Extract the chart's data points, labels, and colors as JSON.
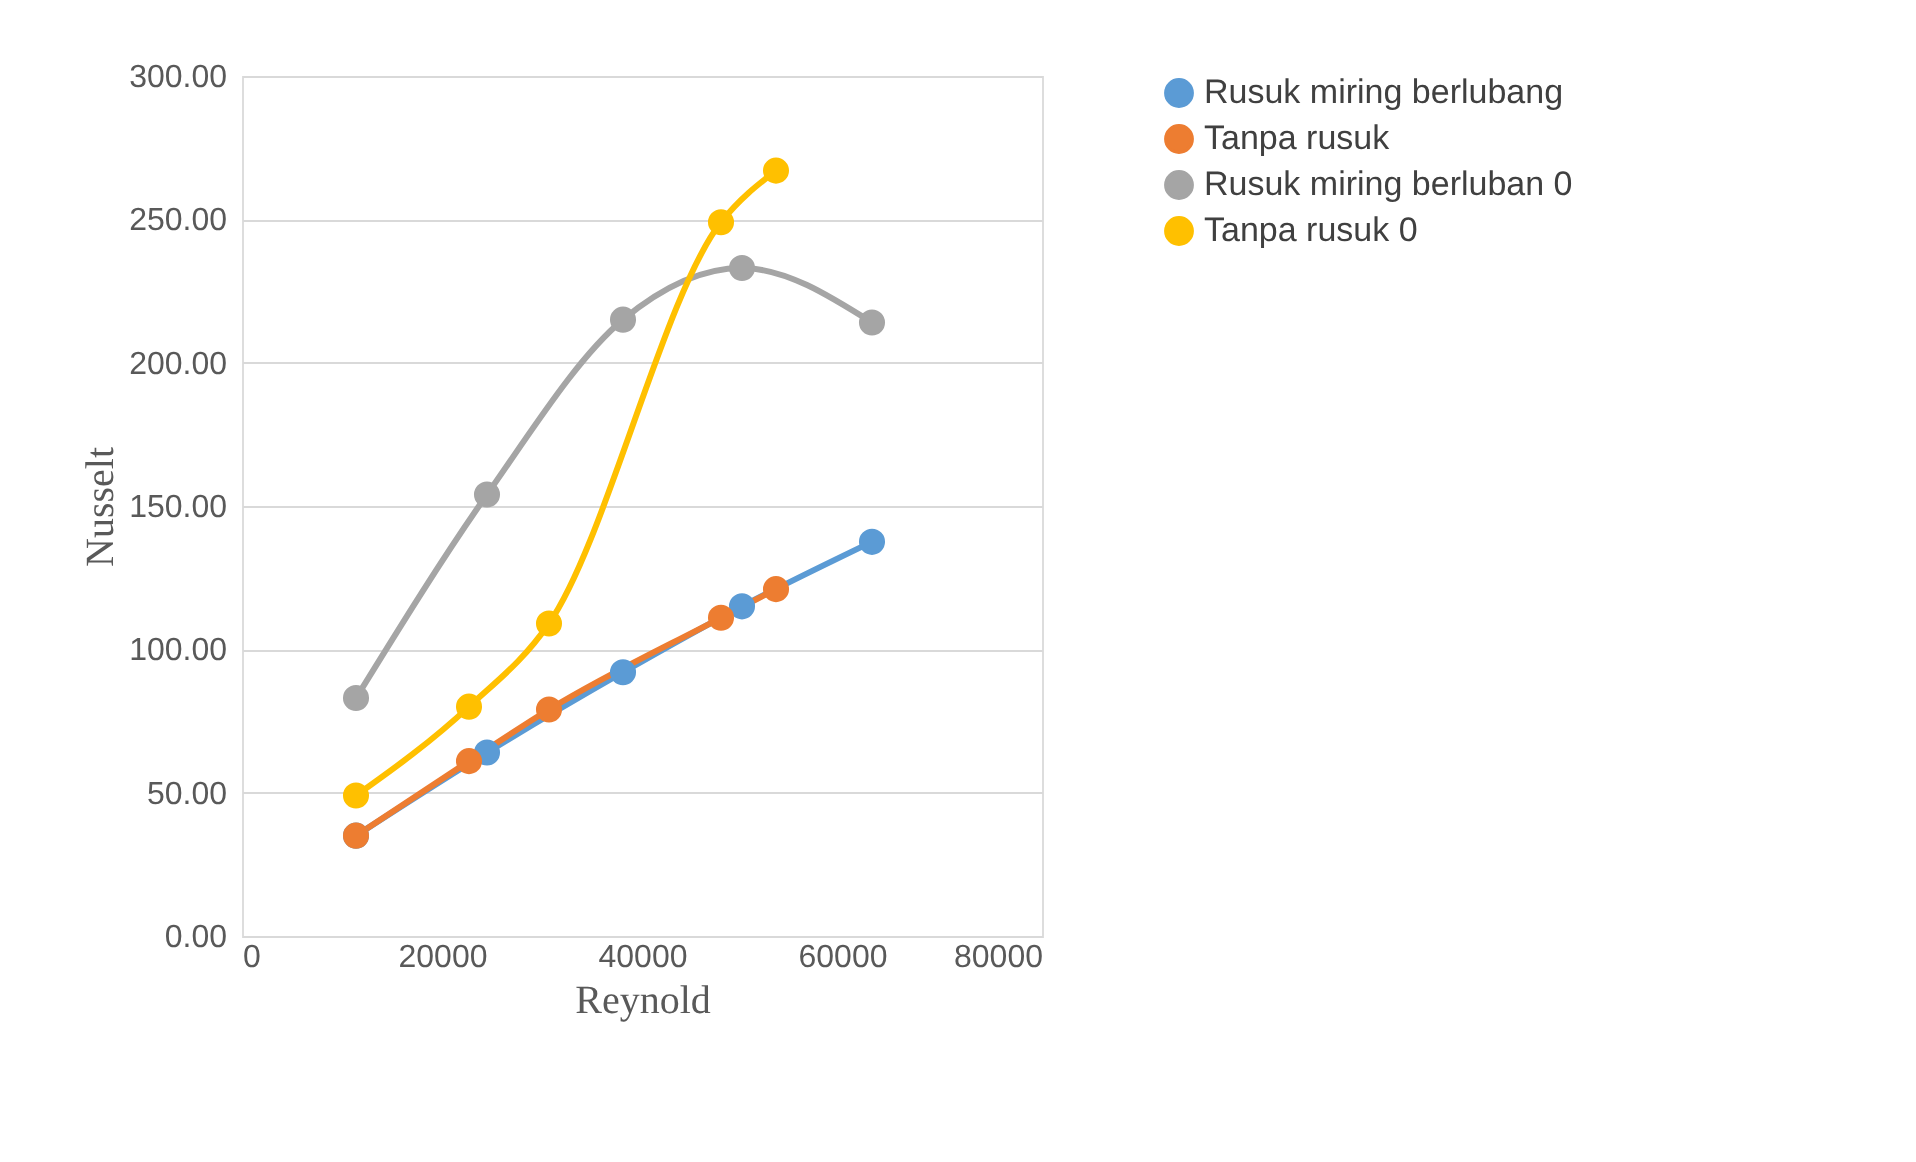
{
  "chart_data": {
    "type": "line",
    "xlabel": "Reynold",
    "ylabel": "Nusselt",
    "xlim": [
      0,
      80000
    ],
    "xticks": [
      0,
      20000,
      40000,
      60000,
      80000
    ],
    "ylim": [
      0,
      300
    ],
    "yticks": [
      {
        "value": 0,
        "label": "0.00"
      },
      {
        "value": 50,
        "label": "50.00"
      },
      {
        "value": 100,
        "label": "100.00"
      },
      {
        "value": 150,
        "label": "150.00"
      },
      {
        "value": 200,
        "label": "200.00"
      },
      {
        "value": 250,
        "label": "250.00"
      },
      {
        "value": 300,
        "label": "300.00"
      }
    ],
    "grid": "y",
    "legend": "right",
    "marker": "circle",
    "line_style": "solid",
    "series": [
      {
        "name": "Rusuk miring berlubang",
        "color": "#5b9bd5",
        "x": [
          11400,
          24500,
          38100,
          50000,
          63000
        ],
        "values": [
          35,
          64,
          92,
          115,
          137.5
        ]
      },
      {
        "name": "Tanpa rusuk",
        "color": "#ed7d31",
        "x": [
          11400,
          22700,
          30700,
          47900,
          53400
        ],
        "values": [
          35,
          61,
          79,
          111,
          121
        ]
      },
      {
        "name": "Rusuk miring berluban 0",
        "color": "#a5a5a5",
        "x": [
          11400,
          24500,
          38100,
          50000,
          63000
        ],
        "values": [
          83,
          154,
          215,
          233,
          214
        ]
      },
      {
        "name": "Tanpa rusuk 0",
        "color": "#ffc000",
        "x": [
          11400,
          22700,
          30700,
          47900,
          53400
        ],
        "values": [
          49,
          80,
          109,
          249,
          267
        ]
      }
    ]
  }
}
